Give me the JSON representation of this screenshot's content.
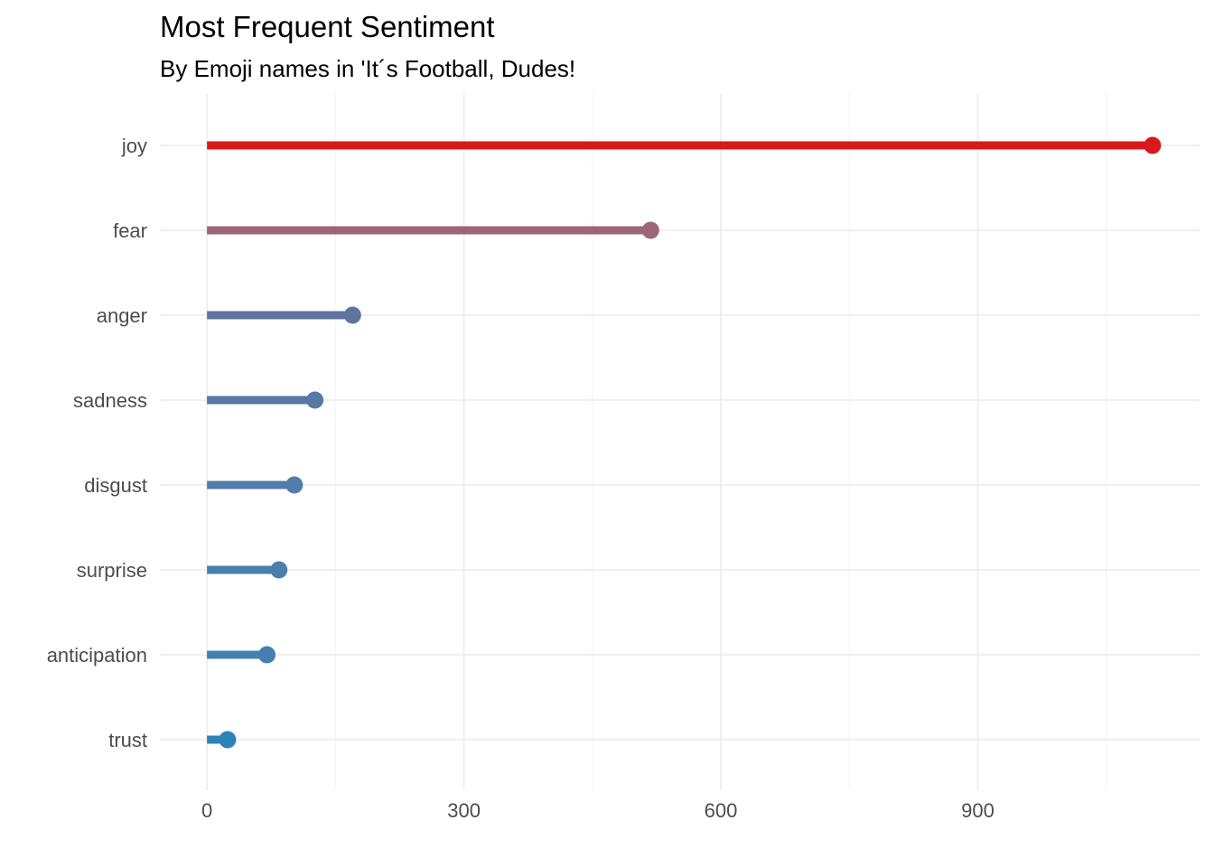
{
  "chart_data": {
    "type": "lollipop",
    "title": "Most Frequent Sentiment",
    "subtitle": "By Emoji names in 'It´s Football, Dudes!",
    "xlabel": "",
    "ylabel": "",
    "categories": [
      "joy",
      "fear",
      "anger",
      "sadness",
      "disgust",
      "surprise",
      "anticipation",
      "trust"
    ],
    "values": [
      1104,
      518,
      170,
      126,
      102,
      84,
      70,
      24
    ],
    "colors": [
      "#d7191c",
      "#9e6577",
      "#61749f",
      "#5878a6",
      "#527ca9",
      "#4a7eac",
      "#447fb0",
      "#2b83ba"
    ],
    "xlim": [
      -55,
      1160
    ],
    "x_ticks": [
      0,
      300,
      600,
      900
    ],
    "x_tick_labels": [
      "0",
      "300",
      "600",
      "900"
    ],
    "grid": true,
    "legend": "none"
  }
}
